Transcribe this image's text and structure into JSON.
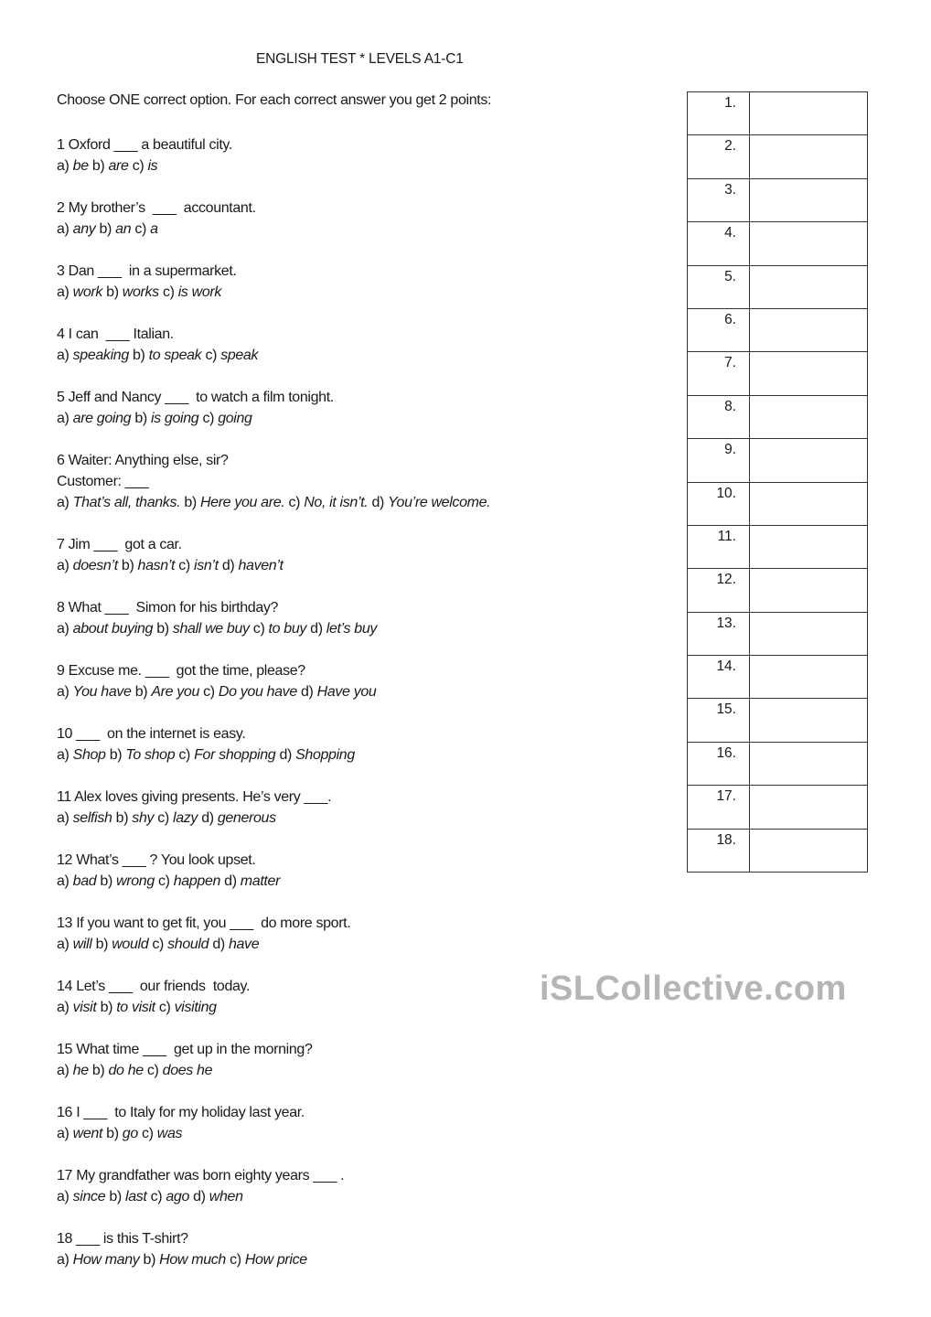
{
  "title": "ENGLISH TEST * LEVELS A1-C1",
  "instructions": "Choose ONE correct option. For each correct answer you get 2 points:",
  "questions": [
    {
      "stem": [
        "1 Oxford ___ a beautiful city."
      ],
      "options": [
        [
          "a)",
          "be"
        ],
        [
          "b)",
          "are"
        ],
        [
          "c)",
          "is"
        ]
      ]
    },
    {
      "stem": [
        "2 My brother’s  ___  accountant."
      ],
      "options": [
        [
          "a)",
          "any"
        ],
        [
          "b)",
          "an"
        ],
        [
          "c)",
          "a"
        ]
      ]
    },
    {
      "stem": [
        "3 Dan ___  in a supermarket."
      ],
      "options": [
        [
          "a)",
          "work"
        ],
        [
          "b)",
          "works"
        ],
        [
          "c)",
          "is work"
        ]
      ]
    },
    {
      "stem": [
        "4 I can  ___ Italian."
      ],
      "options": [
        [
          "a)",
          "speaking"
        ],
        [
          "b)",
          "to speak"
        ],
        [
          "c)",
          "speak"
        ]
      ]
    },
    {
      "stem": [
        "5 Jeff and Nancy ___  to watch a film tonight."
      ],
      "options": [
        [
          "a)",
          "are going"
        ],
        [
          "b)",
          "is going"
        ],
        [
          "c)",
          "going"
        ]
      ]
    },
    {
      "stem": [
        "6 Waiter: Anything else, sir?",
        "Customer: ___"
      ],
      "options": [
        [
          "a)",
          "That’s all, thanks."
        ],
        [
          "b)",
          "Here you are."
        ],
        [
          "c)",
          "No, it isn’t."
        ],
        [
          "d)",
          "You’re welcome."
        ]
      ]
    },
    {
      "stem": [
        "7 Jim ___  got a car."
      ],
      "options": [
        [
          "a)",
          "doesn’t"
        ],
        [
          "b)",
          "hasn’t"
        ],
        [
          "c)",
          "isn’t"
        ],
        [
          "d)",
          "haven’t"
        ]
      ]
    },
    {
      "stem": [
        "8 What ___  Simon for his birthday?"
      ],
      "options": [
        [
          "a)",
          "about buying"
        ],
        [
          "b)",
          "shall we buy"
        ],
        [
          "c)",
          "to buy"
        ],
        [
          "d)",
          "let’s buy"
        ]
      ]
    },
    {
      "stem": [
        "9 Excuse me. ___  got the time, please?"
      ],
      "options": [
        [
          "a)",
          "You have"
        ],
        [
          "b)",
          "Are you"
        ],
        [
          "c)",
          "Do you have"
        ],
        [
          "d)",
          "Have you"
        ]
      ]
    },
    {
      "stem": [
        "10 ___  on the internet is easy."
      ],
      "options": [
        [
          "a)",
          "Shop"
        ],
        [
          "b)",
          "To shop"
        ],
        [
          "c)",
          "For shopping"
        ],
        [
          "d)",
          "Shopping"
        ]
      ]
    },
    {
      "stem": [
        "11 Alex loves giving presents. He’s very ___."
      ],
      "options": [
        [
          "a)",
          "selfish"
        ],
        [
          "b)",
          "shy"
        ],
        [
          "c)",
          "lazy"
        ],
        [
          "d)",
          "generous"
        ]
      ]
    },
    {
      "stem": [
        "12 What’s ___ ? You look upset."
      ],
      "options": [
        [
          "a)",
          "bad"
        ],
        [
          "b)",
          "wrong"
        ],
        [
          "c)",
          "happen"
        ],
        [
          "d)",
          "matter"
        ]
      ]
    },
    {
      "stem": [
        "13 If you want to get fit, you ___  do more sport."
      ],
      "options": [
        [
          "a)",
          "will"
        ],
        [
          "b)",
          "would"
        ],
        [
          "c)",
          "should"
        ],
        [
          "d)",
          "have"
        ]
      ]
    },
    {
      "stem": [
        "14 Let’s ___  our friends  today."
      ],
      "options": [
        [
          "a)",
          "visit"
        ],
        [
          "b)",
          "to visit"
        ],
        [
          "c)",
          "visiting"
        ]
      ]
    },
    {
      "stem": [
        "15 What time ___  get up in the morning?"
      ],
      "options": [
        [
          "a)",
          "he"
        ],
        [
          "b)",
          "do he"
        ],
        [
          "c)",
          "does he"
        ]
      ]
    },
    {
      "stem": [
        "16 I ___  to Italy for my holiday last year."
      ],
      "options": [
        [
          "a)",
          "went"
        ],
        [
          "b)",
          "go"
        ],
        [
          "c)",
          "was"
        ]
      ]
    },
    {
      "stem": [
        "17 My grandfather was born eighty years ___ ."
      ],
      "options": [
        [
          "a)",
          "since"
        ],
        [
          "b)",
          "last"
        ],
        [
          "c)",
          "ago"
        ],
        [
          "d)",
          "when"
        ]
      ]
    },
    {
      "stem": [
        "18 ___ is this T-shirt?"
      ],
      "options": [
        [
          "a)",
          "How many"
        ],
        [
          "b)",
          "How much"
        ],
        [
          "c)",
          "How price"
        ]
      ]
    }
  ],
  "answer_table": [
    "1.",
    "2.",
    "3.",
    "4.",
    "5.",
    "6.",
    "7.",
    "8.",
    "9.",
    "10.",
    "11.",
    "12.",
    "13.",
    "14.",
    "15.",
    "16.",
    "17.",
    "18."
  ],
  "watermark": "iSLCollective.com"
}
